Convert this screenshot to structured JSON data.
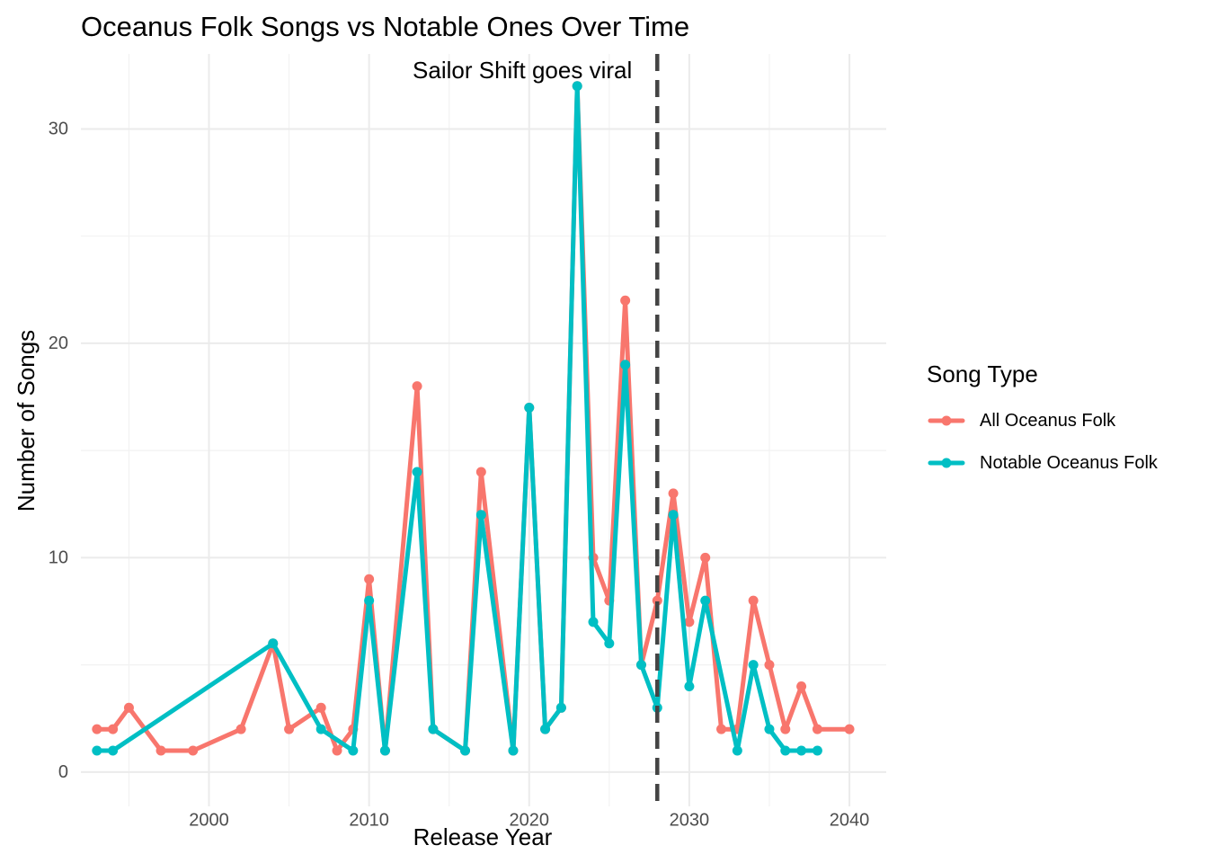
{
  "chart_data": {
    "type": "line",
    "title": "Oceanus Folk Songs vs Notable Ones Over Time",
    "xlabel": "Release Year",
    "ylabel": "Number of Songs",
    "xlim": [
      1992,
      2042.3
    ],
    "ylim": [
      -1.6,
      33.5
    ],
    "x_ticks": [
      2000,
      2010,
      2020,
      2030,
      2040
    ],
    "y_ticks": [
      0,
      10,
      20,
      30
    ],
    "grid": true,
    "legend": {
      "title": "Song Type",
      "position": "right"
    },
    "series": [
      {
        "name": "All Oceanus Folk",
        "color": "#F8766D",
        "x": [
          1993,
          1994,
          1995,
          1997,
          1999,
          2002,
          2004,
          2005,
          2007,
          2008,
          2009,
          2010,
          2011,
          2013,
          2014,
          2016,
          2017,
          2019,
          2020,
          2021,
          2022,
          2023,
          2024,
          2025,
          2026,
          2027,
          2028,
          2029,
          2030,
          2031,
          2032,
          2033,
          2034,
          2035,
          2036,
          2037,
          2038,
          2040
        ],
        "y": [
          2,
          2,
          3,
          1,
          1,
          2,
          6,
          2,
          3,
          1,
          2,
          9,
          1,
          18,
          2,
          1,
          14,
          1,
          17,
          2,
          3,
          32,
          10,
          8,
          22,
          5,
          8,
          13,
          7,
          10,
          2,
          2,
          8,
          5,
          2,
          4,
          2,
          2
        ]
      },
      {
        "name": "Notable Oceanus Folk",
        "color": "#00BFC4",
        "x": [
          1993,
          1994,
          2004,
          2007,
          2009,
          2010,
          2011,
          2013,
          2014,
          2016,
          2017,
          2019,
          2020,
          2021,
          2022,
          2023,
          2024,
          2025,
          2026,
          2027,
          2028,
          2029,
          2030,
          2031,
          2033,
          2034,
          2035,
          2036,
          2037,
          2038
        ],
        "y": [
          1,
          1,
          6,
          2,
          1,
          8,
          1,
          14,
          2,
          1,
          12,
          1,
          17,
          2,
          3,
          32,
          7,
          6,
          19,
          5,
          3,
          12,
          4,
          8,
          1,
          5,
          2,
          1,
          1,
          1
        ]
      }
    ],
    "reference_line": {
      "x": 2028,
      "style": "dashed",
      "color": "#444444",
      "label": "Sailor Shift goes viral"
    }
  }
}
